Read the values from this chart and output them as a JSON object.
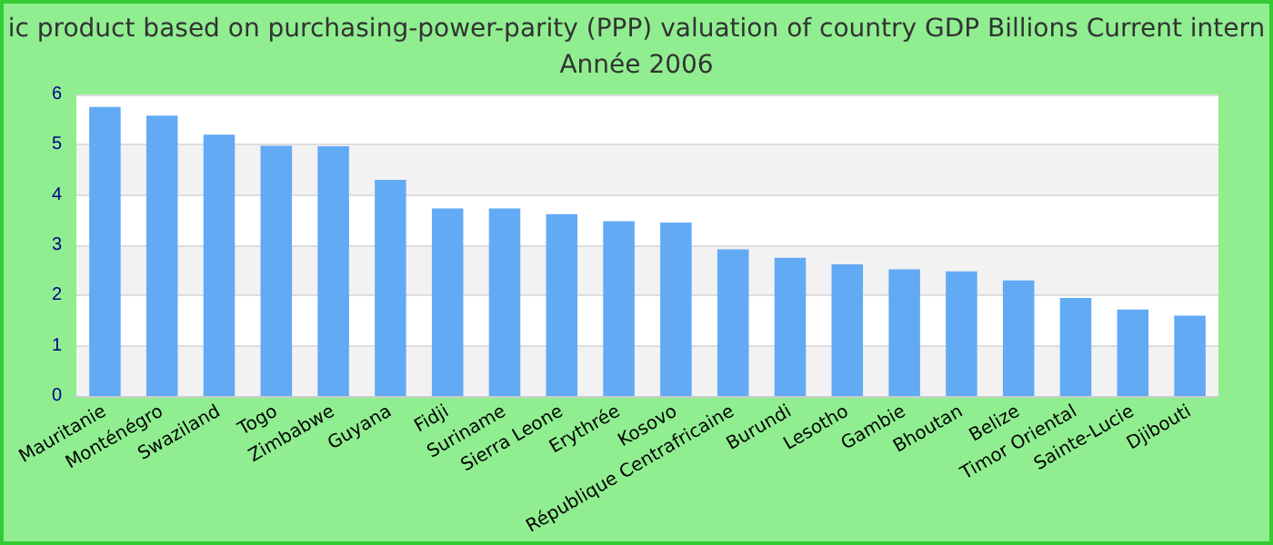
{
  "chart_data": {
    "type": "bar",
    "title": "ic product based on purchasing-power-parity (PPP) valuation of country GDP Billions Current intern",
    "subtitle": "Année 2006",
    "categories": [
      "Mauritanie",
      "Monténégro",
      "Swaziland",
      "Togo",
      "Zimbabwe",
      "Guyana",
      "Fidji",
      "Suriname",
      "Sierra Leone",
      "Erythrée",
      "Kosovo",
      "République Centrafricaine",
      "Burundi",
      "Lesotho",
      "Gambie",
      "Bhoutan",
      "Belize",
      "Timor Oriental",
      "Sainte-Lucie",
      "Djibouti"
    ],
    "values": [
      5.75,
      5.58,
      5.2,
      4.98,
      4.97,
      4.3,
      3.73,
      3.73,
      3.62,
      3.48,
      3.45,
      2.92,
      2.75,
      2.62,
      2.52,
      2.48,
      2.3,
      1.95,
      1.72,
      1.6
    ],
    "color": "#63aaf5",
    "ylim": [
      0,
      6
    ],
    "yticks": [
      0,
      1,
      2,
      3,
      4,
      5,
      6
    ],
    "grid": "y"
  }
}
